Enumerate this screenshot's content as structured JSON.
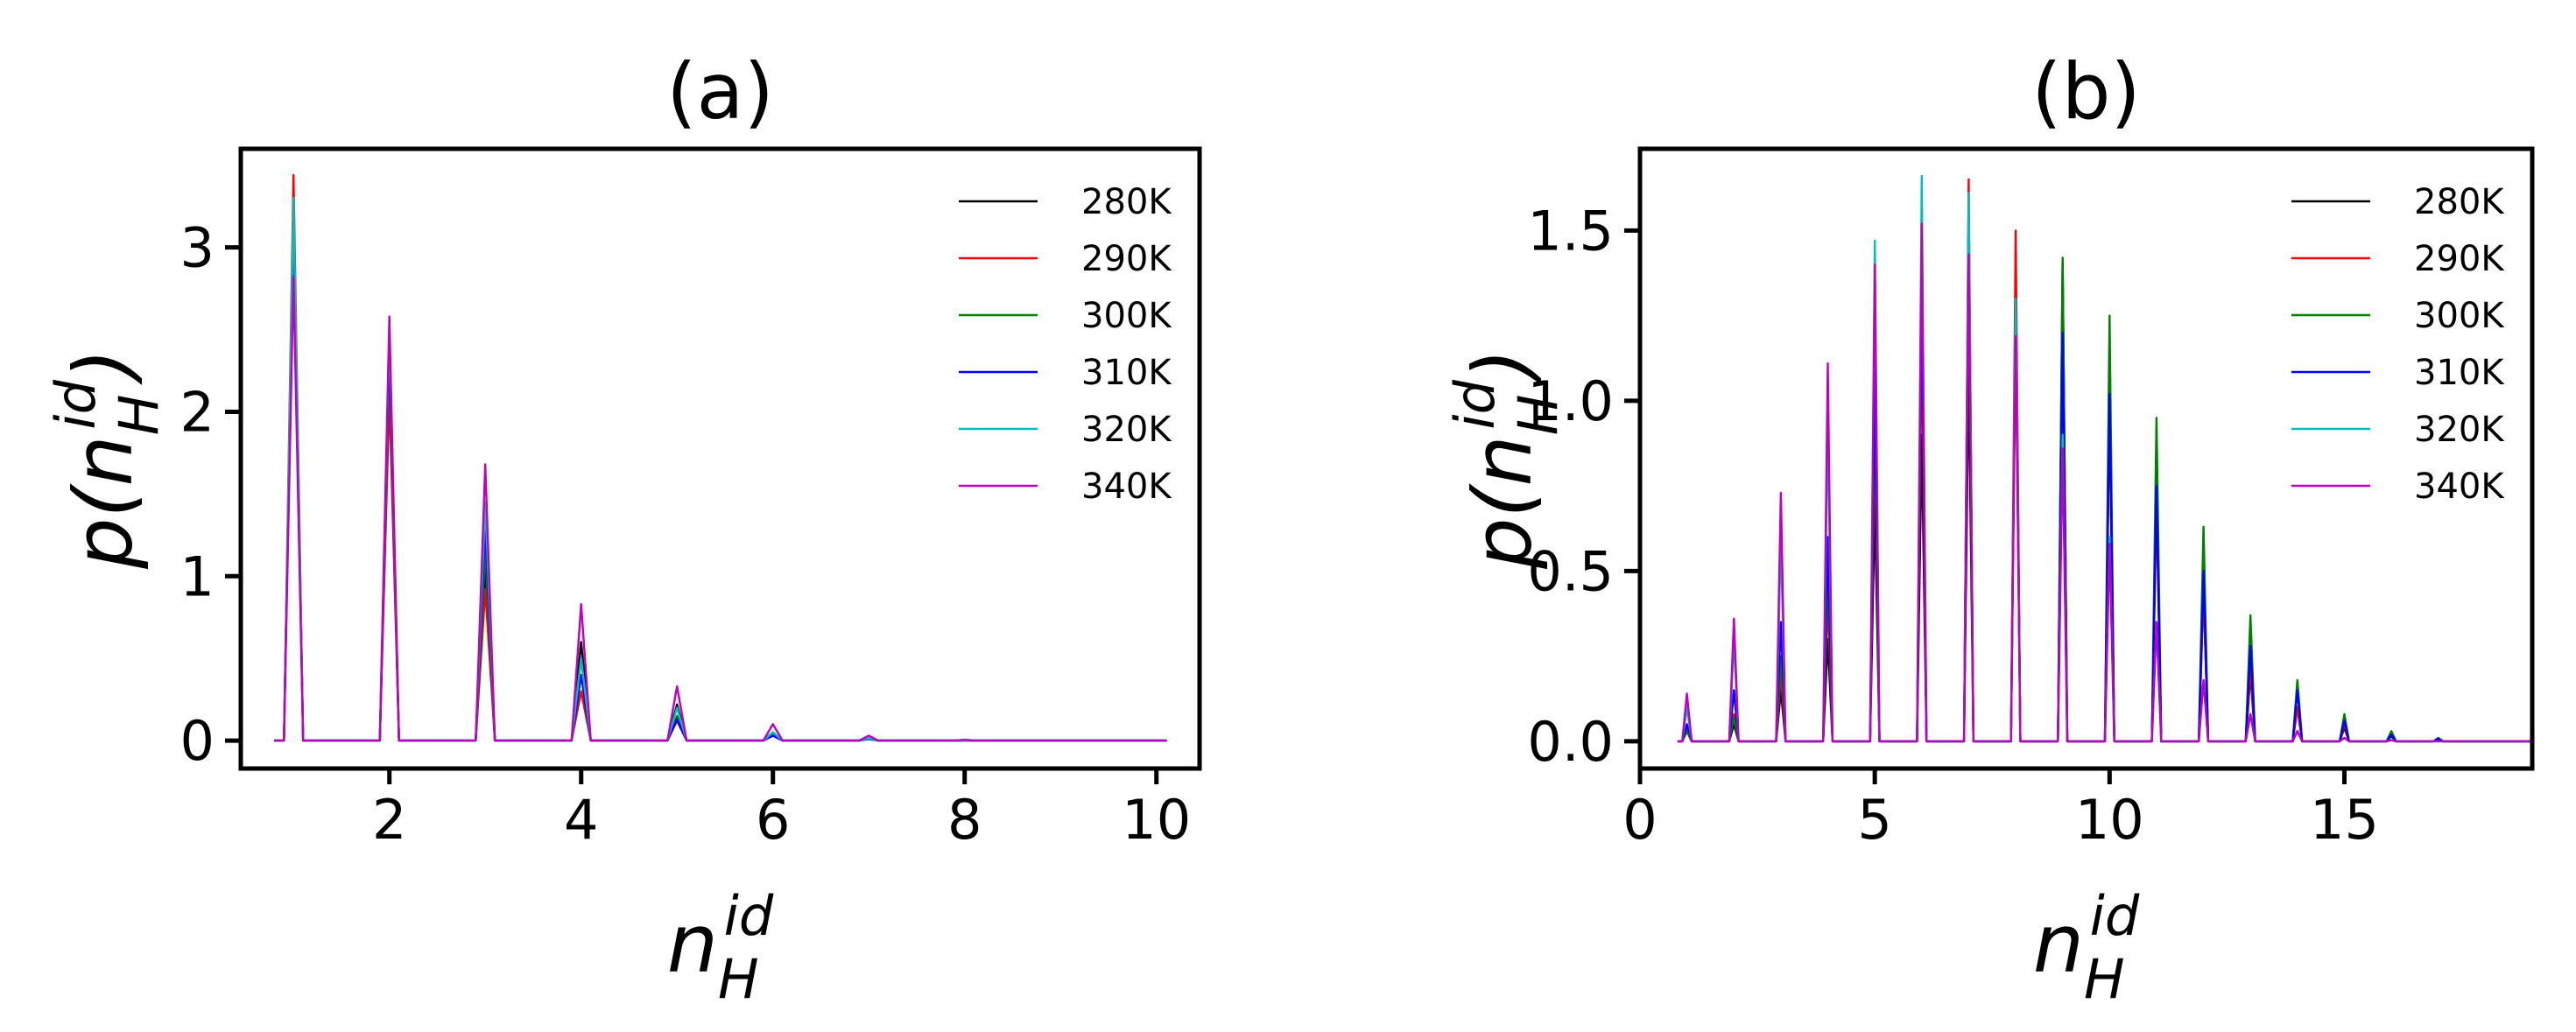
{
  "chart_data": [
    {
      "type": "line",
      "title": "(a)",
      "xlabel": "n_H^id",
      "ylabel": "p(n_H^id)",
      "xlim": [
        0.45,
        10.45
      ],
      "ylim": [
        -0.17,
        3.6
      ],
      "xticks": [
        2,
        4,
        6,
        8,
        10
      ],
      "yticks": [
        0,
        1,
        2,
        3
      ],
      "x": [
        1,
        2,
        3,
        4,
        5,
        6,
        7,
        8,
        9,
        10
      ],
      "x_start": 0.8,
      "legend": {
        "position": "top-right"
      },
      "series": [
        {
          "name": "280K",
          "color": "#000000",
          "values": [
            3.22,
            2.3,
            1.05,
            0.6,
            0.22,
            0.05,
            0.01,
            0,
            0,
            0
          ]
        },
        {
          "name": "290K",
          "color": "#ff0000",
          "values": [
            3.44,
            2.1,
            0.92,
            0.3,
            0.12,
            0.03,
            0.01,
            0,
            0,
            0
          ]
        },
        {
          "name": "300K",
          "color": "#008000",
          "values": [
            3.1,
            2.35,
            1.15,
            0.5,
            0.15,
            0.04,
            0.01,
            0,
            0,
            0
          ]
        },
        {
          "name": "310K",
          "color": "#0000ff",
          "values": [
            3.15,
            2.4,
            1.3,
            0.4,
            0.13,
            0.03,
            0.01,
            0,
            0,
            0
          ]
        },
        {
          "name": "320K",
          "color": "#00bfbf",
          "values": [
            3.3,
            2.5,
            1.45,
            0.5,
            0.2,
            0.05,
            0.015,
            0,
            0,
            0
          ]
        },
        {
          "name": "340K",
          "color": "#bf00bf",
          "values": [
            2.82,
            2.58,
            1.68,
            0.83,
            0.33,
            0.1,
            0.03,
            0.005,
            0,
            0
          ]
        }
      ]
    },
    {
      "type": "line",
      "title": "(b)",
      "xlabel": "n_H^id",
      "ylabel": "p(n_H^id)",
      "xlim": [
        0,
        19
      ],
      "ylim": [
        -0.08,
        1.74
      ],
      "xticks": [
        0,
        5,
        10,
        15
      ],
      "yticks": [
        0.0,
        0.5,
        1.0,
        1.5
      ],
      "ytick_format": "1dp",
      "x": [
        1,
        2,
        3,
        4,
        5,
        6,
        7,
        8,
        9,
        10,
        11,
        12,
        13,
        14,
        15,
        16,
        17,
        18,
        19
      ],
      "x_start": 0.8,
      "legend": {
        "position": "top-right"
      },
      "series": [
        {
          "name": "280K",
          "color": "#000000",
          "values": [
            0.03,
            0.05,
            0.15,
            0.3,
            0.7,
            0.9,
            1.1,
            1.35,
            1.41,
            1.0,
            0.75,
            0.45,
            0.2,
            0.1,
            0.04,
            0.015,
            0.005,
            0,
            0
          ]
        },
        {
          "name": "290K",
          "color": "#ff0000",
          "values": [
            0.04,
            0.08,
            0.2,
            0.42,
            0.9,
            1.2,
            1.65,
            1.5,
            1.2,
            0.98,
            0.7,
            0.45,
            0.22,
            0.1,
            0.05,
            0.02,
            0.006,
            0,
            0
          ]
        },
        {
          "name": "300K",
          "color": "#008000",
          "values": [
            0.03,
            0.07,
            0.25,
            0.5,
            0.95,
            1.3,
            1.5,
            1.3,
            1.42,
            1.25,
            0.95,
            0.63,
            0.37,
            0.18,
            0.08,
            0.03,
            0.01,
            0,
            0
          ]
        },
        {
          "name": "310K",
          "color": "#0000ff",
          "values": [
            0.05,
            0.15,
            0.35,
            0.6,
            1.1,
            1.35,
            1.55,
            1.25,
            1.2,
            1.02,
            0.75,
            0.5,
            0.28,
            0.15,
            0.06,
            0.02,
            0.008,
            0,
            0
          ]
        },
        {
          "name": "320K",
          "color": "#00bfbf",
          "values": [
            0.1,
            0.3,
            0.6,
            0.95,
            1.47,
            1.66,
            1.61,
            1.3,
            0.9,
            0.6,
            0.35,
            0.18,
            0.08,
            0.03,
            0.01,
            0.004,
            0,
            0,
            0
          ]
        },
        {
          "name": "340K",
          "color": "#bf00bf",
          "values": [
            0.14,
            0.36,
            0.73,
            1.11,
            1.4,
            1.52,
            1.43,
            1.19,
            0.86,
            0.58,
            0.35,
            0.18,
            0.08,
            0.03,
            0.01,
            0.003,
            0,
            0,
            0
          ]
        }
      ]
    }
  ]
}
